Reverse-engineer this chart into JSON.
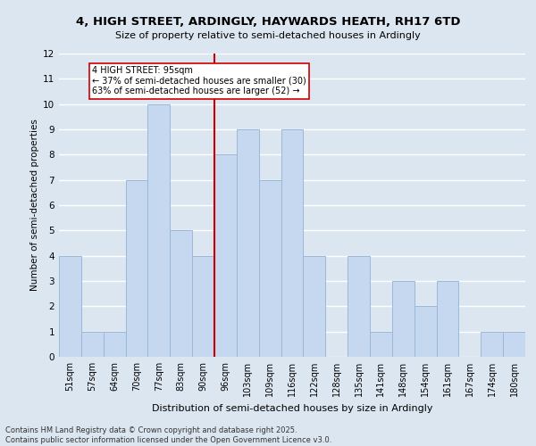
{
  "title1": "4, HIGH STREET, ARDINGLY, HAYWARDS HEATH, RH17 6TD",
  "title2": "Size of property relative to semi-detached houses in Ardingly",
  "xlabel": "Distribution of semi-detached houses by size in Ardingly",
  "ylabel": "Number of semi-detached properties",
  "categories": [
    "51sqm",
    "57sqm",
    "64sqm",
    "70sqm",
    "77sqm",
    "83sqm",
    "90sqm",
    "96sqm",
    "103sqm",
    "109sqm",
    "116sqm",
    "122sqm",
    "128sqm",
    "135sqm",
    "141sqm",
    "148sqm",
    "154sqm",
    "161sqm",
    "167sqm",
    "174sqm",
    "180sqm"
  ],
  "values": [
    4,
    1,
    1,
    7,
    10,
    5,
    4,
    8,
    9,
    7,
    9,
    4,
    0,
    4,
    1,
    3,
    2,
    3,
    0,
    1,
    1
  ],
  "bar_color": "#c5d8f0",
  "bar_edge_color": "#9ab8d8",
  "vline_x_index": 7,
  "vline_color": "#cc0000",
  "annotation_title": "4 HIGH STREET: 95sqm",
  "annotation_line1": "← 37% of semi-detached houses are smaller (30)",
  "annotation_line2": "63% of semi-detached houses are larger (52) →",
  "annotation_box_color": "#ffffff",
  "annotation_box_edge": "#cc0000",
  "ylim": [
    0,
    12
  ],
  "yticks": [
    0,
    1,
    2,
    3,
    4,
    5,
    6,
    7,
    8,
    9,
    10,
    11,
    12
  ],
  "grid_color": "#ffffff",
  "background_color": "#dce6f1",
  "footer1": "Contains HM Land Registry data © Crown copyright and database right 2025.",
  "footer2": "Contains public sector information licensed under the Open Government Licence v3.0."
}
